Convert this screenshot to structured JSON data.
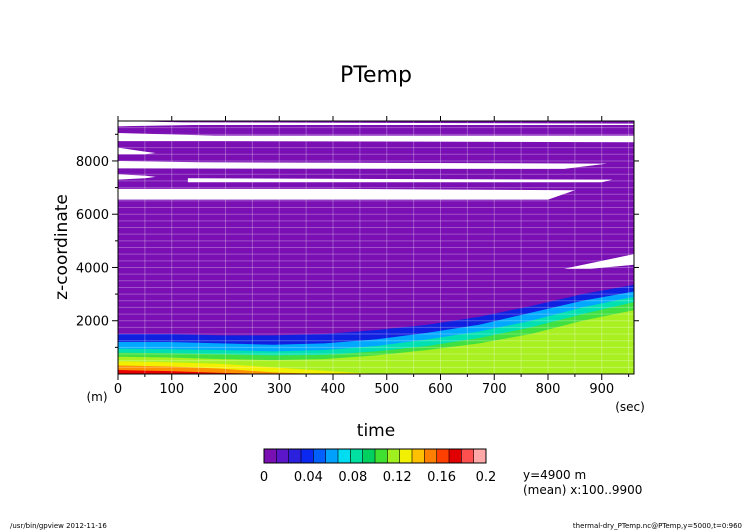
{
  "chart_data": {
    "type": "heatmap",
    "title": "PTemp",
    "xlabel": "time",
    "xunit": "(sec)",
    "ylabel": "z-coordinate",
    "yunit": "(m)",
    "xlim": [
      0,
      960
    ],
    "ylim": [
      0,
      9500
    ],
    "xticks": [
      0,
      100,
      200,
      300,
      400,
      500,
      600,
      700,
      800,
      900
    ],
    "yticks": [
      2000,
      4000,
      6000,
      8000
    ],
    "grid": true,
    "colorbar": {
      "min": 0,
      "max": 0.2,
      "tick_labels": [
        "0",
        "0.04",
        "0.08",
        "0.12",
        "0.16",
        "0.2"
      ],
      "colors": [
        "#7a0fb4",
        "#5a16c8",
        "#2b20dc",
        "#0a28f0",
        "#0060ff",
        "#00a0ff",
        "#00dcf0",
        "#00e0a0",
        "#00d060",
        "#40e030",
        "#a0f020",
        "#f0f000",
        "#ffc000",
        "#ff8000",
        "#ff4000",
        "#e00000",
        "#ff5050",
        "#ffa8a8"
      ]
    },
    "bands": [
      {
        "level": 0.02,
        "color": "#1020e0",
        "z_top": [
          1500,
          1500,
          1450,
          1450,
          1500,
          1650,
          1850,
          2150,
          2550,
          3000,
          3350
        ]
      },
      {
        "level": 0.04,
        "color": "#00a8ff",
        "z_top": [
          1200,
          1200,
          1150,
          1100,
          1150,
          1300,
          1550,
          1850,
          2300,
          2750,
          3100
        ]
      },
      {
        "level": 0.08,
        "color": "#00e0b0",
        "z_top": [
          950,
          930,
          900,
          850,
          900,
          1050,
          1300,
          1600,
          2000,
          2500,
          2900
        ]
      },
      {
        "level": 0.1,
        "color": "#40e040",
        "z_top": [
          800,
          780,
          740,
          700,
          720,
          850,
          1050,
          1350,
          1750,
          2250,
          2700
        ]
      },
      {
        "level": 0.12,
        "color": "#a8f020",
        "z_top": [
          650,
          620,
          560,
          520,
          560,
          700,
          900,
          1150,
          1500,
          2000,
          2400
        ]
      },
      {
        "level": 0.14,
        "color": "#f0f000",
        "z_top": [
          480,
          440,
          380,
          250,
          120,
          0,
          0,
          0,
          0,
          0,
          0
        ]
      },
      {
        "level": 0.16,
        "color": "#ff9000",
        "z_top": [
          320,
          280,
          200,
          60,
          0,
          0,
          0,
          0,
          0,
          0,
          0
        ]
      },
      {
        "level": 0.18,
        "color": "#e80000",
        "z_top": [
          150,
          110,
          40,
          0,
          0,
          0,
          0,
          0,
          0,
          0,
          0
        ]
      }
    ],
    "band_x": [
      0,
      96,
      192,
      288,
      384,
      480,
      576,
      672,
      768,
      864,
      960
    ],
    "base_color": "#7a0fb4",
    "undefined_regions": [
      [
        [
          0,
          9500
        ],
        [
          120,
          9450
        ],
        [
          960,
          9400
        ],
        [
          960,
          9350
        ],
        [
          140,
          9350
        ],
        [
          0,
          9300
        ]
      ],
      [
        [
          0,
          9050
        ],
        [
          180,
          8950
        ],
        [
          960,
          8950
        ],
        [
          960,
          8700
        ],
        [
          180,
          8750
        ],
        [
          0,
          8750
        ]
      ],
      [
        [
          0,
          8500
        ],
        [
          50,
          8350
        ],
        [
          70,
          8300
        ],
        [
          50,
          8250
        ],
        [
          0,
          8250
        ]
      ],
      [
        [
          0,
          8000
        ],
        [
          150,
          7950
        ],
        [
          910,
          7900
        ],
        [
          830,
          7700
        ],
        [
          0,
          7720
        ]
      ],
      [
        [
          0,
          7500
        ],
        [
          50,
          7450
        ],
        [
          70,
          7400
        ],
        [
          50,
          7350
        ],
        [
          0,
          7300
        ]
      ],
      [
        [
          130,
          7350
        ],
        [
          500,
          7320
        ],
        [
          920,
          7300
        ],
        [
          900,
          7200
        ],
        [
          130,
          7200
        ]
      ],
      [
        [
          0,
          6950
        ],
        [
          400,
          6950
        ],
        [
          850,
          6900
        ],
        [
          800,
          6550
        ],
        [
          300,
          6550
        ],
        [
          0,
          6550
        ]
      ],
      [
        [
          830,
          3950
        ],
        [
          960,
          4500
        ],
        [
          960,
          4100
        ],
        [
          880,
          3950
        ]
      ]
    ]
  },
  "colorbar_annotation": {
    "line1": "y=4900 m",
    "line2": "(mean) x:100..9900"
  },
  "footer": {
    "left": "/usr/bin/gpview  2012-11-16",
    "right": "thermal-dry_PTemp.nc@PTemp,y=5000,t=0:960"
  }
}
